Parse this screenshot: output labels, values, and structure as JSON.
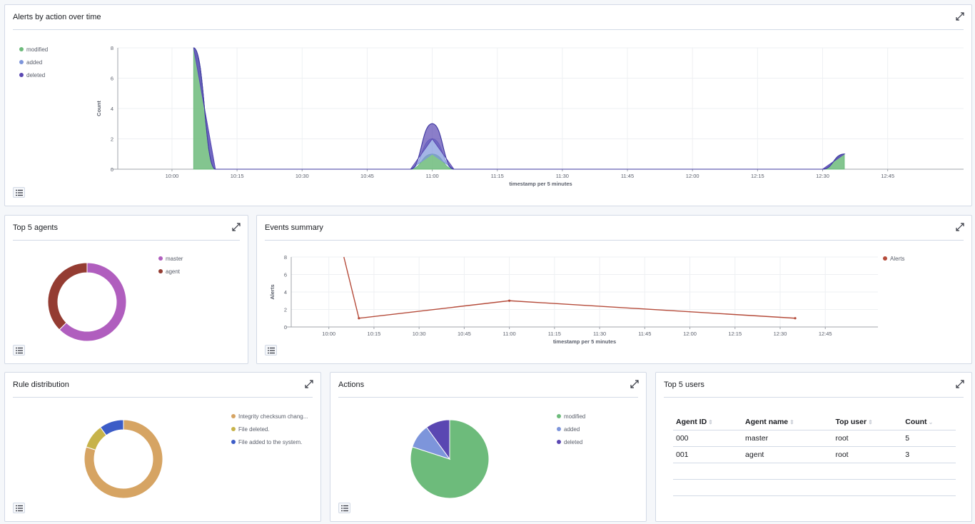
{
  "panels": {
    "alerts_over_time": {
      "title": "Alerts by action over time"
    },
    "top_agents": {
      "title": "Top 5 agents"
    },
    "events_summary": {
      "title": "Events summary"
    },
    "rule_distribution": {
      "title": "Rule distribution"
    },
    "actions": {
      "title": "Actions"
    },
    "top_users": {
      "title": "Top 5 users"
    }
  },
  "colors": {
    "modified": "#6dbb7b",
    "added": "#7d95db",
    "deleted": "#5a47b2",
    "master": "#b05ebe",
    "agent": "#943c32",
    "alerts": "#b54b3a",
    "integrity": "#d6a463",
    "file_deleted": "#c7b34a",
    "file_added": "#3c5cc7"
  },
  "icons": {
    "expand": "expand-icon",
    "list": "list-icon"
  },
  "chart_data": [
    {
      "type": "area",
      "title": "Alerts by action over time",
      "xlabel": "timestamp per 5 minutes",
      "ylabel": "Count",
      "ylim": [
        0,
        8
      ],
      "yticks": [
        0,
        2,
        4,
        6,
        8
      ],
      "xticks": [
        "10:00",
        "10:15",
        "10:30",
        "10:45",
        "11:00",
        "11:15",
        "11:30",
        "11:45",
        "12:00",
        "12:15",
        "12:30",
        "12:45"
      ],
      "stacked": true,
      "legend_position": "left",
      "series": [
        {
          "name": "modified",
          "points": [
            [
              "10:05",
              8
            ],
            [
              "11:00",
              1
            ],
            [
              "12:35",
              1
            ]
          ]
        },
        {
          "name": "added",
          "points": [
            [
              "11:00",
              1
            ]
          ]
        },
        {
          "name": "deleted",
          "points": [
            [
              "11:00",
              1
            ]
          ]
        }
      ]
    },
    {
      "type": "pie",
      "title": "Top 5 agents",
      "donut": true,
      "legend_position": "right",
      "labels": [
        "master",
        "agent"
      ],
      "values": [
        5,
        3
      ]
    },
    {
      "type": "line",
      "title": "Events summary",
      "xlabel": "timestamp per 5 minutes",
      "ylabel": "Alerts",
      "ylim": [
        0,
        8
      ],
      "yticks": [
        0,
        2,
        4,
        6,
        8
      ],
      "xticks": [
        "10:00",
        "10:15",
        "10:30",
        "10:45",
        "11:00",
        "11:15",
        "11:30",
        "11:45",
        "12:00",
        "12:15",
        "12:30",
        "12:45"
      ],
      "legend_position": "top-right",
      "series": [
        {
          "name": "Alerts",
          "points": [
            [
              "10:05",
              8
            ],
            [
              "10:10",
              1
            ],
            [
              "11:00",
              3
            ],
            [
              "12:35",
              1
            ]
          ]
        }
      ]
    },
    {
      "type": "pie",
      "title": "Rule distribution",
      "donut": true,
      "legend_position": "right",
      "labels": [
        "Integrity checksum chang...",
        "File deleted.",
        "File added to the system."
      ],
      "values": [
        8,
        1,
        1
      ]
    },
    {
      "type": "pie",
      "title": "Actions",
      "donut": false,
      "legend_position": "right",
      "labels": [
        "modified",
        "added",
        "deleted"
      ],
      "values": [
        8,
        1,
        1
      ]
    }
  ],
  "top_users": {
    "columns": [
      "Agent ID",
      "Agent name",
      "Top user",
      "Count"
    ],
    "sort_icons": [
      "⇕",
      "⇕",
      "⇕",
      "⌄"
    ],
    "rows": [
      [
        "000",
        "master",
        "root",
        "5"
      ],
      [
        "001",
        "agent",
        "root",
        "3"
      ]
    ]
  }
}
